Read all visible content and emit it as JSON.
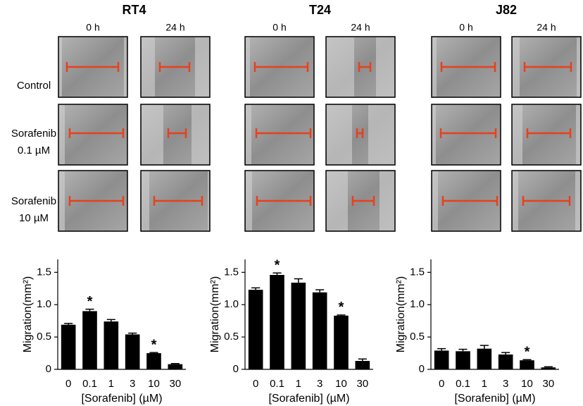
{
  "panels": {
    "cell_lines": [
      "RT4",
      "T24",
      "J82"
    ],
    "times": [
      "0 h",
      "24 h"
    ],
    "rows": [
      [
        "Control"
      ],
      [
        "Sorafenib",
        "0.1 µM"
      ],
      [
        "Sorafenib",
        "10 µM"
      ]
    ]
  },
  "chart_data": [
    {
      "type": "bar",
      "ylabel": "Migration(mm²)",
      "xlabel": "[Sorafenib] (µM)",
      "color": "#000000",
      "categories": [
        "0",
        "0.1",
        "1",
        "3",
        "10",
        "30"
      ],
      "values": [
        0.69,
        0.9,
        0.74,
        0.54,
        0.25,
        0.08
      ],
      "errors": [
        0.02,
        0.03,
        0.03,
        0.02,
        0.01,
        0.01
      ],
      "annotations": [
        {
          "text": "*",
          "x": "0.1"
        },
        {
          "text": "*",
          "x": "10"
        }
      ],
      "ylim": [
        0,
        1.7
      ],
      "yticks": [
        0,
        0.5,
        {
          "value": 1,
          "label": "1.0"
        },
        1.5
      ]
    },
    {
      "type": "bar",
      "ylabel": "Migration(mm²)",
      "xlabel": "[Sorafenib] (µM)",
      "color": "#000000",
      "categories": [
        "0",
        "0.1",
        "1",
        "3",
        "10",
        "30"
      ],
      "values": [
        1.23,
        1.46,
        1.34,
        1.19,
        0.83,
        0.13
      ],
      "errors": [
        0.03,
        0.03,
        0.06,
        0.04,
        0.01,
        0.03
      ],
      "annotations": [
        {
          "text": "*",
          "x": "0.1"
        },
        {
          "text": "*",
          "x": "10"
        }
      ],
      "ylim": [
        0,
        1.7
      ],
      "yticks": [
        0,
        0.5,
        {
          "value": 1,
          "label": "1.0"
        },
        1.5
      ]
    },
    {
      "type": "bar",
      "ylabel": "Migration(mm²)",
      "xlabel": "[Sorafenib] (µM)",
      "color": "#000000",
      "categories": [
        "0",
        "0.1",
        "1",
        "3",
        "10",
        "30"
      ],
      "values": [
        0.29,
        0.28,
        0.32,
        0.23,
        0.14,
        0.03
      ],
      "errors": [
        0.03,
        0.03,
        0.05,
        0.03,
        0.01,
        0.01
      ],
      "annotations": [
        {
          "text": "*",
          "x": "10"
        }
      ],
      "ylim": [
        0,
        1.7
      ],
      "yticks": [
        0,
        0.5,
        {
          "value": 1,
          "label": "1.0"
        },
        1.5
      ]
    }
  ]
}
